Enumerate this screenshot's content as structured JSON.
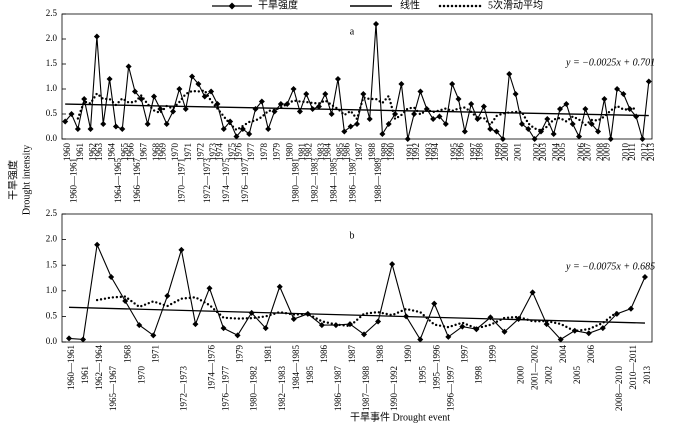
{
  "figure": {
    "legend": [
      "干旱强度",
      "线性",
      "5次滑动平均"
    ],
    "ylabel": [
      "干旱强度",
      "Drought intensity"
    ],
    "xlabel": "干旱事件 Drought event"
  },
  "chart_data": [
    {
      "type": "line",
      "title": "a",
      "categories": [
        "1960",
        "1960—1961",
        "1961",
        null,
        "1962",
        "1963",
        null,
        "1964",
        "1964—1965",
        "1965",
        "1966",
        "1966—1967",
        "1967",
        null,
        "1968",
        "1969",
        null,
        "1970",
        "1970—1971",
        "1971",
        null,
        "1972",
        "1972—1973",
        "1973",
        "1974",
        "1974—1975",
        "1975",
        "1976",
        "1976—1977",
        "1977",
        null,
        "1978",
        null,
        "1979",
        null,
        "1980",
        "1980—1981",
        "1981",
        "1982",
        "1982—1983",
        "1983",
        "1984",
        "1984—1985",
        "1985",
        "1986",
        "1986—1987",
        "1987",
        null,
        "1988",
        "1988—1989",
        "1989",
        "1990",
        null,
        null,
        "1991",
        "1992",
        null,
        "1993",
        "1994",
        null,
        null,
        "1995",
        "1996",
        null,
        "1997",
        "1998",
        null,
        null,
        "1999",
        "2000",
        null,
        "2001",
        null,
        null,
        "2002",
        "2003",
        null,
        "2004",
        "2005",
        null,
        null,
        "2006",
        "2007",
        null,
        "2008",
        "2009",
        null,
        null,
        "2010",
        "2011",
        null,
        "2012",
        "2013"
      ],
      "series": [
        {
          "color": "#000000",
          "marker": "diamond",
          "values": [
            0.35,
            0.5,
            0.2,
            0.8,
            0.2,
            2.05,
            0.3,
            1.2,
            0.25,
            0.2,
            1.45,
            0.95,
            0.8,
            0.3,
            0.85,
            0.6,
            0.3,
            0.55,
            1.0,
            0.6,
            1.25,
            1.1,
            0.85,
            0.95,
            0.7,
            0.2,
            0.35,
            0.05,
            0.2,
            0.1,
            0.6,
            0.75,
            0.2,
            0.55,
            0.7,
            0.7,
            1.0,
            0.55,
            0.9,
            0.6,
            0.65,
            0.9,
            0.5,
            1.2,
            0.15,
            0.25,
            0.3,
            0.9,
            0.4,
            2.3,
            0.1,
            0.3,
            0.5,
            1.1,
            0.0,
            0.5,
            0.95,
            0.6,
            0.4,
            0.45,
            0.3,
            1.1,
            0.8,
            0.15,
            0.7,
            0.4,
            0.65,
            0.2,
            0.15,
            0.0,
            1.3,
            0.9,
            0.3,
            0.2,
            0.0,
            0.15,
            0.4,
            0.1,
            0.6,
            0.7,
            0.3,
            0.05,
            0.6,
            0.3,
            0.15,
            0.8,
            0.0,
            1.0,
            0.9,
            0.6,
            0.45,
            0.0,
            1.15
          ]
        }
      ],
      "trend": {
        "label": "y = −0.0025x + 0.701",
        "slope": -0.0025,
        "intercept": 0.701
      },
      "moving_average": {
        "window": 5
      },
      "ylim": [
        0,
        2.5
      ],
      "yticks": [
        {
          "value": 0,
          "label": "0.0"
        },
        {
          "value": 0.5,
          "label": "0.5"
        },
        {
          "value": 1,
          "label": "1.0"
        },
        {
          "value": 1.5,
          "label": "1.5"
        },
        {
          "value": 2,
          "label": "2.0"
        },
        {
          "value": 2.5,
          "label": "2.5"
        }
      ]
    },
    {
      "type": "line",
      "title": "b",
      "categories": [
        "1960—1961",
        "1961",
        "1962—1964",
        "1965—1967",
        "1968",
        "1970",
        "1971",
        null,
        "1972—1973",
        null,
        "1974—1976",
        "1976—1977",
        "1979",
        "1980—1982",
        "1981",
        "1982—1983",
        "1984—1985",
        "1985",
        "1986",
        "1986—1987",
        "1987",
        "1987—1988",
        "1988",
        "1990—1992",
        "1990",
        "1995",
        "1995—1996",
        "1996—1997",
        "1997",
        "1998",
        "1999",
        null,
        "2000",
        "2001—2002",
        "2002",
        "2004",
        "2005",
        "2006",
        null,
        "2008—2010",
        "2010—2011",
        "2013"
      ],
      "series": [
        {
          "color": "#000000",
          "marker": "diamond",
          "values": [
            0.07,
            0.05,
            1.9,
            1.27,
            0.8,
            0.33,
            0.13,
            0.9,
            1.8,
            0.35,
            1.05,
            0.27,
            0.13,
            0.57,
            0.27,
            1.08,
            0.45,
            0.55,
            0.33,
            0.33,
            0.35,
            0.15,
            0.4,
            1.52,
            0.5,
            0.05,
            0.75,
            0.1,
            0.3,
            0.25,
            0.48,
            0.2,
            0.45,
            0.97,
            0.35,
            0.05,
            0.22,
            0.17,
            0.27,
            0.55,
            0.65,
            1.27
          ]
        }
      ],
      "trend": {
        "label": "y = −0.0075x + 0.685",
        "slope": -0.0075,
        "intercept": 0.685
      },
      "moving_average": {
        "window": 5
      },
      "ylim": [
        0,
        2.5
      ],
      "yticks": [
        {
          "value": 0,
          "label": "0.0"
        },
        {
          "value": 0.5,
          "label": "0.5"
        },
        {
          "value": 1,
          "label": "1.0"
        },
        {
          "value": 1.5,
          "label": "1.5"
        },
        {
          "value": 2,
          "label": "2.0"
        },
        {
          "value": 2.5,
          "label": "2.5"
        }
      ]
    }
  ]
}
